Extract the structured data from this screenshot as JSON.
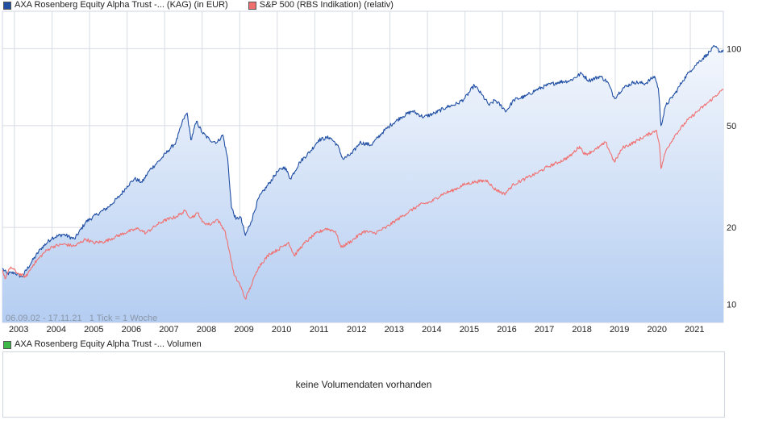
{
  "legend_main": [
    {
      "label": "AXA Rosenberg Equity Alpha Trust -... (KAG) (in EUR)",
      "color": "#1f4ea3"
    },
    {
      "label": "S&P 500 (RBS Indikation) (relativ)",
      "color": "#f07070"
    }
  ],
  "legend_volume": [
    {
      "label": "AXA Rosenberg Equity Alpha Trust -... Volumen",
      "color": "#3fb84a"
    }
  ],
  "range_info": "06.09.02 - 17.11.21   1 Tick = 1 Woche",
  "volume_message": "keine Volumendaten vorhanden",
  "chart_data": {
    "type": "line",
    "yscale": "log",
    "ylim": [
      8.5,
      140
    ],
    "xlim": [
      2002.68,
      2021.88
    ],
    "yticks": [
      10,
      20,
      50,
      100
    ],
    "ytick_labels": [
      "10",
      "20",
      "50",
      "100"
    ],
    "xticks": [
      2003,
      2004,
      2005,
      2006,
      2007,
      2008,
      2009,
      2010,
      2011,
      2012,
      2013,
      2014,
      2015,
      2016,
      2017,
      2018,
      2019,
      2020,
      2021
    ],
    "xtick_labels": [
      "2003",
      "2004",
      "2005",
      "2006",
      "2007",
      "2008",
      "2009",
      "2010",
      "2011",
      "2012",
      "2013",
      "2014",
      "2015",
      "2016",
      "2017",
      "2018",
      "2019",
      "2020",
      "2021"
    ],
    "grid": true,
    "series": [
      {
        "name": "AXA Rosenberg Equity Alpha Trust -... (KAG) (in EUR)",
        "color": "#1f4ea3",
        "fill": true,
        "points": [
          [
            2002.68,
            13.8
          ],
          [
            2002.8,
            13.2
          ],
          [
            2003.0,
            13.3
          ],
          [
            2003.2,
            12.8
          ],
          [
            2003.45,
            14.6
          ],
          [
            2003.7,
            16.5
          ],
          [
            2004.0,
            18.2
          ],
          [
            2004.3,
            18.8
          ],
          [
            2004.6,
            18.0
          ],
          [
            2004.9,
            21.0
          ],
          [
            2005.2,
            22.5
          ],
          [
            2005.5,
            24.0
          ],
          [
            2005.8,
            26.5
          ],
          [
            2006.0,
            29.0
          ],
          [
            2006.2,
            31.0
          ],
          [
            2006.4,
            30.0
          ],
          [
            2006.6,
            33.5
          ],
          [
            2006.9,
            37.0
          ],
          [
            2007.1,
            40.0
          ],
          [
            2007.3,
            43.0
          ],
          [
            2007.5,
            53.0
          ],
          [
            2007.6,
            56.0
          ],
          [
            2007.7,
            44.0
          ],
          [
            2007.85,
            52.0
          ],
          [
            2008.0,
            47.0
          ],
          [
            2008.2,
            44.0
          ],
          [
            2008.4,
            43.0
          ],
          [
            2008.55,
            46.0
          ],
          [
            2008.68,
            37.0
          ],
          [
            2008.78,
            24.0
          ],
          [
            2008.9,
            21.5
          ],
          [
            2009.02,
            22.0
          ],
          [
            2009.15,
            18.6
          ],
          [
            2009.3,
            21.0
          ],
          [
            2009.5,
            26.0
          ],
          [
            2009.8,
            30.0
          ],
          [
            2010.0,
            33.0
          ],
          [
            2010.2,
            34.5
          ],
          [
            2010.35,
            31.0
          ],
          [
            2010.6,
            36.0
          ],
          [
            2010.9,
            40.0
          ],
          [
            2011.1,
            44.0
          ],
          [
            2011.4,
            45.0
          ],
          [
            2011.6,
            42.0
          ],
          [
            2011.75,
            37.0
          ],
          [
            2012.0,
            39.0
          ],
          [
            2012.2,
            43.0
          ],
          [
            2012.5,
            42.0
          ],
          [
            2012.8,
            47.0
          ],
          [
            2013.0,
            50.0
          ],
          [
            2013.3,
            54.0
          ],
          [
            2013.6,
            57.0
          ],
          [
            2013.9,
            54.0
          ],
          [
            2014.2,
            56.0
          ],
          [
            2014.5,
            59.0
          ],
          [
            2014.8,
            61.0
          ],
          [
            2015.0,
            64.0
          ],
          [
            2015.25,
            72.0
          ],
          [
            2015.45,
            66.0
          ],
          [
            2015.65,
            60.0
          ],
          [
            2015.8,
            63.0
          ],
          [
            2016.1,
            57.0
          ],
          [
            2016.3,
            63.0
          ],
          [
            2016.6,
            65.0
          ],
          [
            2016.9,
            69.0
          ],
          [
            2017.2,
            72.0
          ],
          [
            2017.5,
            74.0
          ],
          [
            2017.8,
            75.0
          ],
          [
            2018.1,
            80.0
          ],
          [
            2018.3,
            75.0
          ],
          [
            2018.6,
            78.0
          ],
          [
            2018.8,
            74.0
          ],
          [
            2018.98,
            64.0
          ],
          [
            2019.2,
            70.0
          ],
          [
            2019.5,
            74.0
          ],
          [
            2019.8,
            73.0
          ],
          [
            2020.05,
            78.0
          ],
          [
            2020.15,
            70.0
          ],
          [
            2020.22,
            50.0
          ],
          [
            2020.35,
            60.0
          ],
          [
            2020.6,
            67.0
          ],
          [
            2020.8,
            75.0
          ],
          [
            2021.0,
            82.0
          ],
          [
            2021.2,
            88.0
          ],
          [
            2021.45,
            95.0
          ],
          [
            2021.65,
            102.0
          ],
          [
            2021.8,
            97.0
          ],
          [
            2021.88,
            99.0
          ]
        ]
      },
      {
        "name": "S&P 500 (RBS Indikation) (relativ)",
        "color": "#f07070",
        "fill": false,
        "points": [
          [
            2002.68,
            13.6
          ],
          [
            2002.75,
            12.6
          ],
          [
            2002.9,
            14.0
          ],
          [
            2003.1,
            13.2
          ],
          [
            2003.3,
            12.8
          ],
          [
            2003.5,
            14.3
          ],
          [
            2003.8,
            16.0
          ],
          [
            2004.0,
            16.8
          ],
          [
            2004.3,
            17.2
          ],
          [
            2004.6,
            16.9
          ],
          [
            2004.9,
            18.0
          ],
          [
            2005.1,
            17.4
          ],
          [
            2005.4,
            17.6
          ],
          [
            2005.7,
            18.4
          ],
          [
            2006.0,
            19.2
          ],
          [
            2006.3,
            19.8
          ],
          [
            2006.5,
            19.0
          ],
          [
            2006.8,
            20.5
          ],
          [
            2007.0,
            21.3
          ],
          [
            2007.3,
            22.0
          ],
          [
            2007.55,
            23.2
          ],
          [
            2007.7,
            21.8
          ],
          [
            2007.9,
            22.8
          ],
          [
            2008.0,
            21.0
          ],
          [
            2008.2,
            20.5
          ],
          [
            2008.4,
            21.5
          ],
          [
            2008.6,
            19.5
          ],
          [
            2008.75,
            15.5
          ],
          [
            2008.85,
            13.0
          ],
          [
            2009.0,
            12.0
          ],
          [
            2009.15,
            10.5
          ],
          [
            2009.3,
            11.8
          ],
          [
            2009.5,
            14.0
          ],
          [
            2009.8,
            15.8
          ],
          [
            2010.0,
            16.3
          ],
          [
            2010.3,
            17.5
          ],
          [
            2010.45,
            15.5
          ],
          [
            2010.7,
            17.2
          ],
          [
            2011.0,
            18.8
          ],
          [
            2011.3,
            19.8
          ],
          [
            2011.55,
            19.3
          ],
          [
            2011.7,
            16.7
          ],
          [
            2012.0,
            17.8
          ],
          [
            2012.3,
            19.3
          ],
          [
            2012.6,
            19.0
          ],
          [
            2012.9,
            20.0
          ],
          [
            2013.2,
            21.5
          ],
          [
            2013.5,
            23.0
          ],
          [
            2013.8,
            24.5
          ],
          [
            2014.1,
            25.2
          ],
          [
            2014.4,
            27.0
          ],
          [
            2014.7,
            28.0
          ],
          [
            2015.0,
            29.5
          ],
          [
            2015.3,
            30.2
          ],
          [
            2015.6,
            30.5
          ],
          [
            2015.75,
            28.5
          ],
          [
            2016.05,
            27.0
          ],
          [
            2016.3,
            29.5
          ],
          [
            2016.6,
            31.0
          ],
          [
            2016.9,
            32.5
          ],
          [
            2017.2,
            34.5
          ],
          [
            2017.5,
            36.0
          ],
          [
            2017.8,
            38.0
          ],
          [
            2018.05,
            41.5
          ],
          [
            2018.2,
            38.5
          ],
          [
            2018.5,
            40.5
          ],
          [
            2018.75,
            43.0
          ],
          [
            2018.98,
            36.0
          ],
          [
            2019.2,
            41.0
          ],
          [
            2019.5,
            43.0
          ],
          [
            2019.8,
            45.5
          ],
          [
            2020.1,
            48.0
          ],
          [
            2020.18,
            42.0
          ],
          [
            2020.22,
            34.0
          ],
          [
            2020.35,
            40.0
          ],
          [
            2020.6,
            46.0
          ],
          [
            2020.9,
            52.0
          ],
          [
            2021.2,
            57.0
          ],
          [
            2021.5,
            62.0
          ],
          [
            2021.75,
            67.0
          ],
          [
            2021.88,
            69.0
          ]
        ]
      }
    ]
  }
}
